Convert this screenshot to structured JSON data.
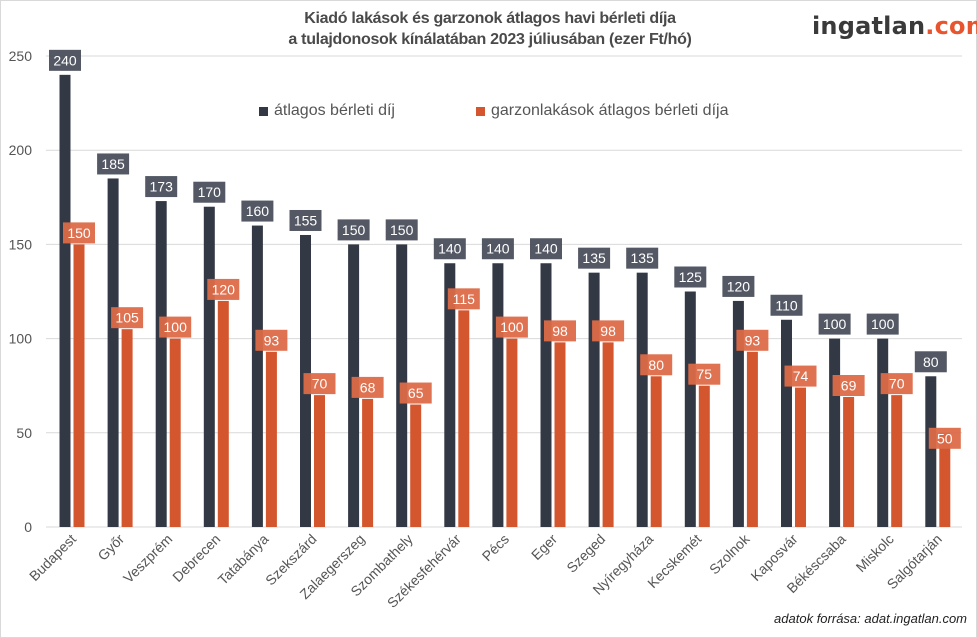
{
  "chart_data": {
    "type": "bar",
    "title_line1": "Kiadó lakások és garzonok átlagos havi bérleti díja",
    "title_line2": "a tulajdonosok kínálatában 2023 júliusában (ezer Ft/hó)",
    "xlabel": "",
    "ylabel": "",
    "ylim": [
      0,
      250
    ],
    "yticks": [
      0,
      50,
      100,
      150,
      200,
      250
    ],
    "grid": true,
    "legend_position": "top-center",
    "categories": [
      "Budapest",
      "Győr",
      "Veszprém",
      "Debrecen",
      "Tatabánya",
      "Szekszárd",
      "Zalaegerszeg",
      "Szombathely",
      "Székesfehérvár",
      "Pécs",
      "Eger",
      "Szeged",
      "Nyíregyháza",
      "Kecskemét",
      "Szolnok",
      "Kaposvár",
      "Békéscsaba",
      "Miskolc",
      "Salgótarján"
    ],
    "series": [
      {
        "name": "átlagos bérleti díj",
        "color": "#333845",
        "label_color": "#4a4f5c",
        "values": [
          240,
          185,
          173,
          170,
          160,
          155,
          150,
          150,
          140,
          140,
          140,
          135,
          135,
          125,
          120,
          110,
          100,
          100,
          80
        ]
      },
      {
        "name": "garzonlakások átlagos bérleti díja",
        "color": "#d4562f",
        "label_color": "#dc6a48",
        "values": [
          150,
          105,
          100,
          120,
          93,
          70,
          68,
          65,
          115,
          100,
          98,
          98,
          80,
          75,
          93,
          74,
          69,
          70,
          50
        ]
      }
    ]
  },
  "branding": {
    "logo_main": "ingatlan",
    "logo_suffix": ".com",
    "logo_suffix_color": "#e8542e"
  },
  "footer": {
    "source": "adatok forrása: adat.ingatlan.com"
  }
}
